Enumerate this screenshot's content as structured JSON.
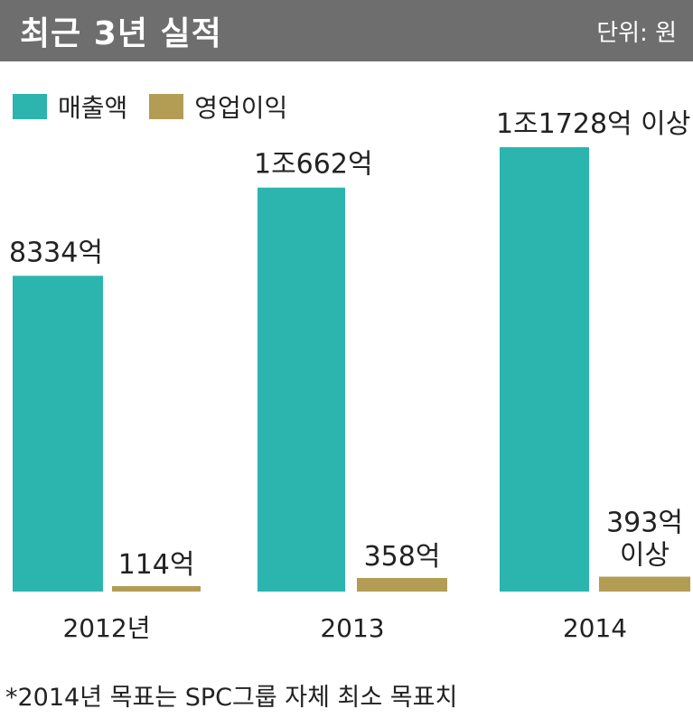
{
  "header": {
    "title": "최근 3년 실적",
    "unit": "단위: 원"
  },
  "legend": [
    {
      "name": "매출액",
      "color": "#2bb5ae"
    },
    {
      "name": "영업이익",
      "color": "#b39c54"
    }
  ],
  "chart_data": {
    "type": "bar",
    "categories": [
      "2012년",
      "2013",
      "2014"
    ],
    "series": [
      {
        "name": "매출액",
        "color": "#2bb5ae",
        "values": [
          8334,
          10662,
          11728
        ],
        "labels": [
          "8334억",
          "1조662억",
          "1조1728억 이상"
        ]
      },
      {
        "name": "영업이익",
        "color": "#b39c54",
        "values": [
          114,
          358,
          393
        ],
        "labels": [
          "114억",
          "358억",
          "393억\n이상"
        ]
      }
    ],
    "ylim": [
      0,
      11728
    ],
    "grid": false,
    "legend_position": "top-left"
  },
  "footnote": "*2014년 목표는 SPC그룹 자체 최소 목표치"
}
